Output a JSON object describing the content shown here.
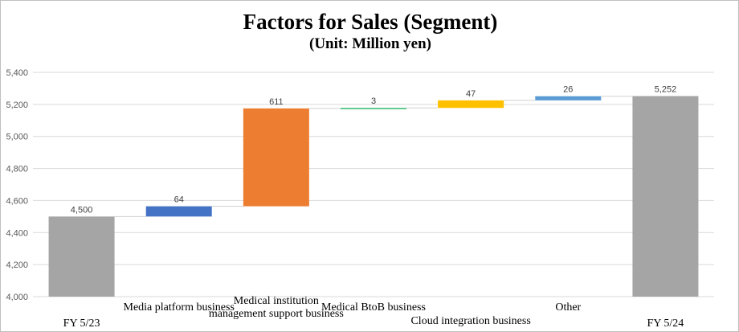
{
  "chart_data": {
    "type": "waterfall",
    "title": "Factors for Sales (Segment)",
    "subtitle": "(Unit: Million yen)",
    "categories": [
      "FY 5/23",
      "Media platform business",
      "Medical institution\nmanagement support business",
      "Medical BtoB business",
      "Cloud integration business",
      "Other",
      "FY 5/24"
    ],
    "values": [
      4500,
      64,
      611,
      3,
      47,
      26,
      5252
    ],
    "kinds": [
      "total",
      "delta",
      "delta",
      "delta",
      "delta",
      "delta",
      "total"
    ],
    "data_labels": [
      "4,500",
      "64",
      "611",
      "3",
      "47",
      "26",
      "5,252"
    ],
    "colors": [
      "#a5a5a5",
      "#4472c4",
      "#ed7d31",
      "#2eb86b",
      "#ffc000",
      "#5b9bd5",
      "#a5a5a5"
    ],
    "ylim": [
      4000,
      5400
    ],
    "yticks": [
      4000,
      4200,
      4400,
      4600,
      4800,
      5000,
      5200,
      5400
    ],
    "ytick_labels": [
      "4,000",
      "4,200",
      "4,400",
      "4,600",
      "4,800",
      "5,000",
      "5,200",
      "5,400"
    ],
    "grid": true,
    "xlabel": "",
    "ylabel": ""
  }
}
